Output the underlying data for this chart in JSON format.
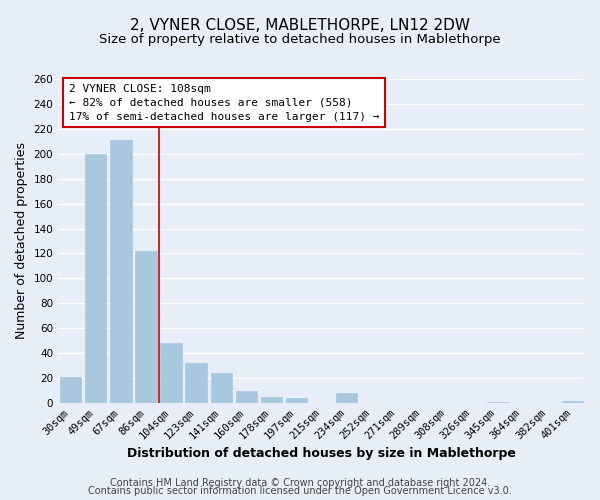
{
  "title": "2, VYNER CLOSE, MABLETHORPE, LN12 2DW",
  "subtitle": "Size of property relative to detached houses in Mablethorpe",
  "xlabel": "Distribution of detached houses by size in Mablethorpe",
  "ylabel": "Number of detached properties",
  "bar_labels": [
    "30sqm",
    "49sqm",
    "67sqm",
    "86sqm",
    "104sqm",
    "123sqm",
    "141sqm",
    "160sqm",
    "178sqm",
    "197sqm",
    "215sqm",
    "234sqm",
    "252sqm",
    "271sqm",
    "289sqm",
    "308sqm",
    "326sqm",
    "345sqm",
    "364sqm",
    "382sqm",
    "401sqm"
  ],
  "bar_values": [
    21,
    200,
    211,
    122,
    48,
    32,
    24,
    10,
    5,
    4,
    0,
    8,
    0,
    0,
    0,
    0,
    0,
    1,
    0,
    0,
    2
  ],
  "bar_color": "#a8c8e0",
  "red_line_x": 3.5,
  "annotation_text": "2 VYNER CLOSE: 108sqm\n← 82% of detached houses are smaller (558)\n17% of semi-detached houses are larger (117) →",
  "annotation_box_color": "#ffffff",
  "annotation_box_edge_color": "#cc0000",
  "ylim": [
    0,
    260
  ],
  "yticks": [
    0,
    20,
    40,
    60,
    80,
    100,
    120,
    140,
    160,
    180,
    200,
    220,
    240,
    260
  ],
  "footer_line1": "Contains HM Land Registry data © Crown copyright and database right 2024.",
  "footer_line2": "Contains public sector information licensed under the Open Government Licence v3.0.",
  "bg_color": "#e8eef8",
  "plot_bg_color": "#e8eef8",
  "grid_color": "#ffffff",
  "title_fontsize": 11,
  "subtitle_fontsize": 9.5,
  "axis_label_fontsize": 9,
  "tick_fontsize": 7.5,
  "footer_fontsize": 7
}
